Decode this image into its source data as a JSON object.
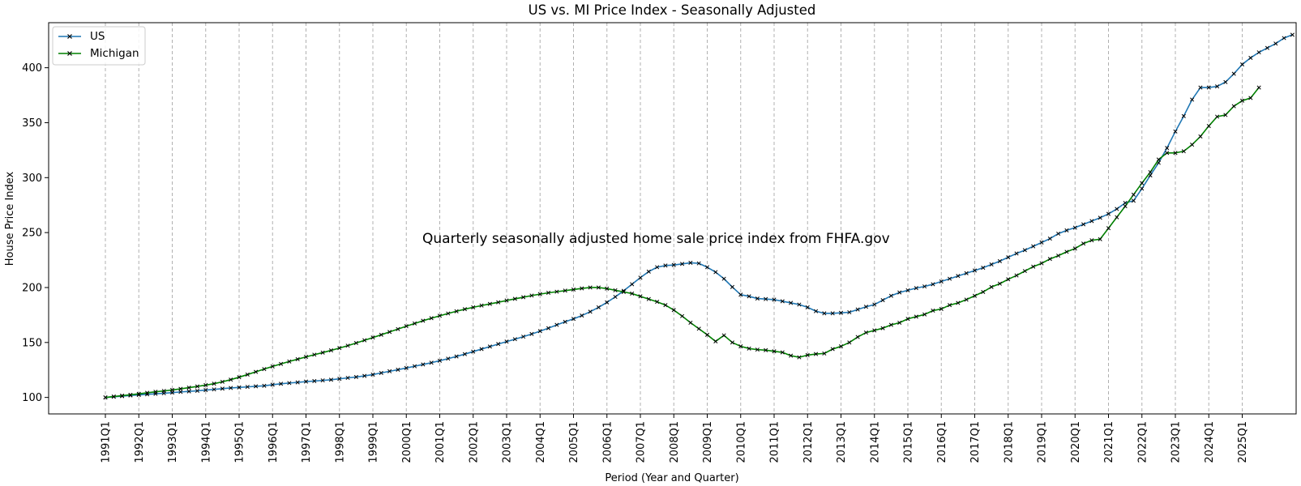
{
  "chart_data": {
    "type": "line",
    "title": "US vs. MI Price Index - Seasonally Adjusted",
    "xlabel": "Period (Year and Quarter)",
    "ylabel": "House Price Index",
    "annotation": "Quarterly seasonally adjusted home sale price index from FHFA.gov",
    "x_tick_labels": [
      "1991Q1",
      "1992Q1",
      "1993Q1",
      "1994Q1",
      "1995Q1",
      "1996Q1",
      "1997Q1",
      "1998Q1",
      "1999Q1",
      "2000Q1",
      "2001Q1",
      "2002Q1",
      "2003Q1",
      "2004Q1",
      "2005Q1",
      "2006Q1",
      "2007Q1",
      "2008Q1",
      "2009Q1",
      "2010Q1",
      "2011Q1",
      "2012Q1",
      "2013Q1",
      "2014Q1",
      "2015Q1",
      "2016Q1",
      "2017Q1",
      "2018Q1",
      "2019Q1",
      "2020Q1",
      "2021Q1",
      "2022Q1",
      "2023Q1",
      "2024Q1",
      "2025Q1"
    ],
    "y_ticks": [
      100,
      150,
      200,
      250,
      300,
      350,
      400
    ],
    "xlim": [
      "1990Q2",
      "2026Q4"
    ],
    "ylim": [
      85,
      441
    ],
    "grid": "vertical dashed at year ticks",
    "legend_position": "top-left",
    "marker": "x",
    "series": [
      {
        "name": "US",
        "color": "#1f77b4",
        "values": [
          100,
          100.6,
          101.2,
          101.8,
          102.3,
          102.8,
          103.3,
          103.8,
          104.4,
          105,
          105.5,
          106,
          106.7,
          107.3,
          108,
          108.6,
          109.1,
          109.6,
          110.1,
          110.6,
          111.6,
          112.4,
          113.1,
          113.7,
          114.4,
          114.9,
          115.5,
          116.1,
          116.9,
          117.8,
          118.6,
          119.6,
          120.8,
          122.3,
          123.8,
          125.2,
          126.8,
          128.4,
          130,
          131.6,
          133.4,
          135.3,
          137.3,
          139.4,
          141.7,
          144,
          146.3,
          148.6,
          150.8,
          153,
          155.3,
          157.7,
          160.3,
          163,
          166,
          168.8,
          171.5,
          174.5,
          178,
          182,
          186.5,
          191.5,
          197,
          203,
          209,
          214.5,
          218.5,
          220,
          220.5,
          221.5,
          222.5,
          222,
          218.5,
          214,
          208,
          200.5,
          193.5,
          192,
          190,
          189.5,
          189,
          187.5,
          186,
          184.5,
          182,
          178.5,
          176.5,
          176.5,
          177,
          177.5,
          180,
          182.5,
          184.5,
          188.5,
          192.5,
          195.5,
          197.5,
          199.5,
          201,
          203,
          205.5,
          208,
          210.5,
          213,
          215.5,
          218,
          221,
          224,
          227.5,
          231,
          234,
          237.5,
          241,
          244.5,
          249,
          252,
          254.5,
          257.5,
          260.5,
          263.5,
          267,
          271.5,
          277,
          279,
          290,
          302,
          313.5,
          327,
          342,
          356,
          371,
          382,
          382,
          383,
          387,
          394.5,
          403,
          409,
          414,
          418,
          422,
          427,
          430
        ]
      },
      {
        "name": "Michigan",
        "color": "#008000",
        "values": [
          100,
          100.8,
          101.6,
          102.4,
          103.3,
          104.2,
          105.1,
          105.9,
          106.8,
          107.8,
          108.9,
          110,
          111.2,
          112.5,
          114.2,
          116.2,
          118.4,
          120.8,
          123.3,
          125.8,
          128.2,
          130.5,
          132.7,
          134.8,
          136.9,
          138.9,
          140.8,
          142.8,
          144.9,
          147.1,
          149.5,
          152,
          154.5,
          157,
          159.6,
          162.2,
          164.8,
          167.3,
          169.8,
          172.1,
          174.3,
          176.4,
          178.4,
          180.3,
          182,
          183.6,
          185.1,
          186.6,
          188.2,
          189.7,
          191.2,
          192.7,
          194,
          195.2,
          196.2,
          197.2,
          198.2,
          199.2,
          200,
          200,
          199,
          197.5,
          196,
          194.5,
          192,
          189.5,
          187,
          184,
          179.5,
          174,
          168,
          162.5,
          157,
          151,
          156.5,
          150,
          146.5,
          144.5,
          143.5,
          143,
          142,
          141,
          138,
          136.5,
          138.5,
          139.5,
          140,
          144,
          146.5,
          150,
          155,
          159,
          161,
          163,
          166,
          168,
          171.5,
          173.5,
          175.5,
          179,
          180.5,
          184,
          186,
          189,
          192.5,
          196,
          200.5,
          203.5,
          207.5,
          211,
          215,
          219,
          222,
          226,
          229,
          232.5,
          235.5,
          240,
          243,
          244,
          254,
          264,
          274,
          284.5,
          295,
          305,
          316.5,
          322.5,
          322.5,
          324,
          330,
          337.5,
          347,
          355.5,
          357,
          365,
          370,
          372.5,
          382
        ]
      }
    ]
  }
}
